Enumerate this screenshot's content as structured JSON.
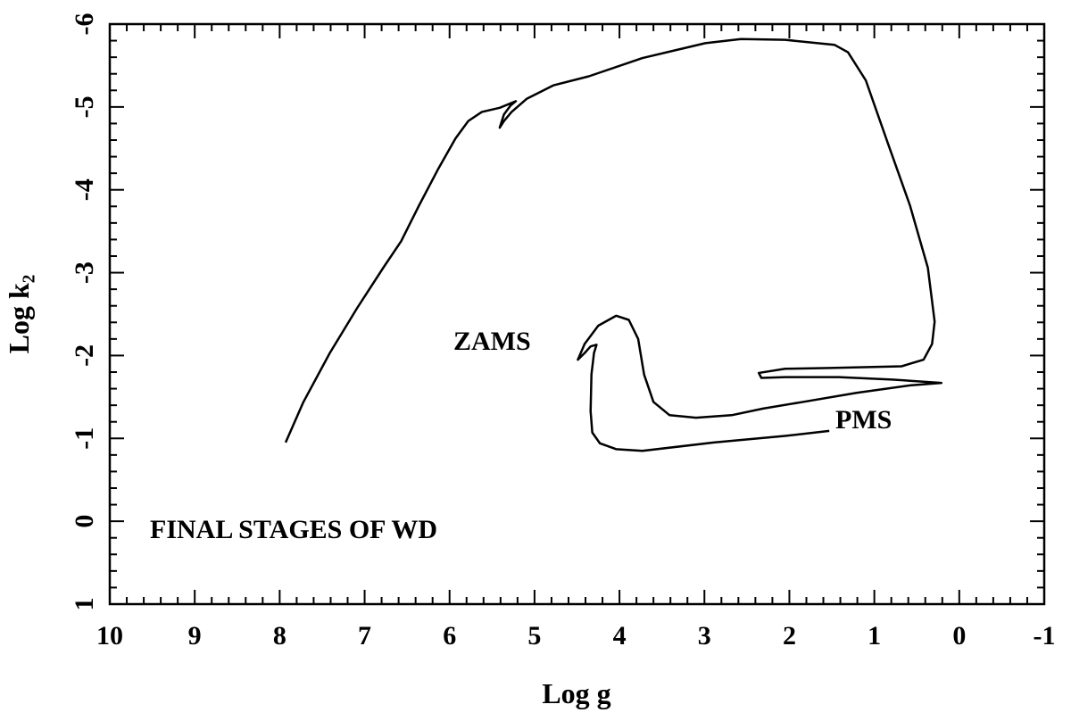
{
  "chart_data": {
    "type": "line",
    "xlabel": "Log g",
    "ylabel": "Log k₂",
    "annotations": [
      "ZAMS",
      "PMS",
      "FINAL STAGES OF WD"
    ],
    "xlim": [
      10,
      -1
    ],
    "ylim": [
      1,
      -6
    ],
    "xticks": [
      10,
      9,
      8,
      7,
      6,
      5,
      4,
      3,
      2,
      1,
      0,
      -1
    ],
    "yticks": [
      1,
      0,
      -1,
      -2,
      -3,
      -4,
      -5,
      -6
    ],
    "color": "#000000",
    "x": [
      1.53,
      2.05,
      2.89,
      3.73,
      4.04,
      4.23,
      4.32,
      4.34,
      4.33,
      4.3,
      4.27,
      4.34,
      4.41,
      4.49,
      4.41,
      4.25,
      4.04,
      3.89,
      3.78,
      3.71,
      3.6,
      3.41,
      3.1,
      2.68,
      2.31,
      1.84,
      1.21,
      0.58,
      0.21,
      0.79,
      1.42,
      2.05,
      2.33,
      2.36,
      2.05,
      1.52,
      0.68,
      0.42,
      0.32,
      0.29,
      0.37,
      0.58,
      0.84,
      1.1,
      1.31,
      1.47,
      2.05,
      2.57,
      2.99,
      3.73,
      4.36,
      4.78,
      5.09,
      5.27,
      5.36,
      5.41,
      5.36,
      5.28,
      5.22,
      5.41,
      5.62,
      5.78,
      5.93,
      6.14,
      6.36,
      6.57,
      6.78,
      7.09,
      7.41,
      7.72,
      7.93
    ],
    "values": [
      -1.09,
      -1.03,
      -0.95,
      -0.85,
      -0.87,
      -0.94,
      -1.07,
      -1.33,
      -1.77,
      -2.03,
      -2.13,
      -2.11,
      -2.03,
      -1.95,
      -2.14,
      -2.36,
      -2.48,
      -2.43,
      -2.2,
      -1.77,
      -1.44,
      -1.28,
      -1.25,
      -1.28,
      -1.36,
      -1.44,
      -1.55,
      -1.64,
      -1.67,
      -1.71,
      -1.74,
      -1.74,
      -1.73,
      -1.79,
      -1.84,
      -1.85,
      -1.87,
      -1.95,
      -2.14,
      -2.41,
      -3.06,
      -3.81,
      -4.56,
      -5.32,
      -5.66,
      -5.75,
      -5.81,
      -5.82,
      -5.77,
      -5.59,
      -5.37,
      -5.26,
      -5.1,
      -4.94,
      -4.83,
      -4.75,
      -4.91,
      -5.02,
      -5.07,
      -4.99,
      -4.94,
      -4.83,
      -4.62,
      -4.24,
      -3.81,
      -3.38,
      -3.06,
      -2.57,
      -2.03,
      -1.44,
      -0.95
    ]
  }
}
